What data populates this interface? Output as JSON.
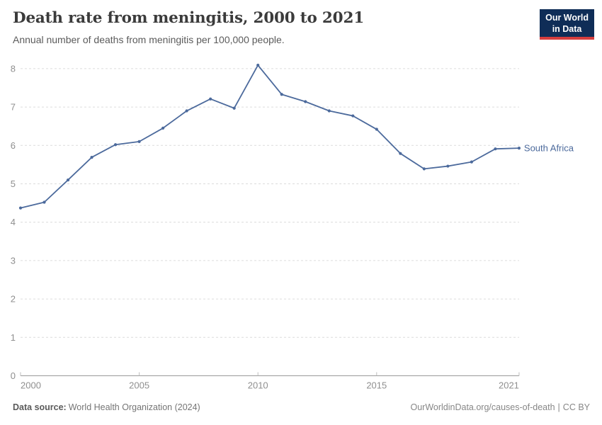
{
  "header": {
    "title": "Death rate from meningitis, 2000 to 2021",
    "subtitle": "Annual number of deaths from meningitis per 100,000 people.",
    "logo": {
      "line1": "Our World",
      "line2": "in Data"
    }
  },
  "chart_data": {
    "type": "line",
    "title": "Death rate from meningitis, 2000 to 2021",
    "xlabel": "",
    "ylabel": "",
    "x": [
      2000,
      2001,
      2002,
      2003,
      2004,
      2005,
      2006,
      2007,
      2008,
      2009,
      2010,
      2011,
      2012,
      2013,
      2014,
      2015,
      2016,
      2017,
      2018,
      2019,
      2020,
      2021
    ],
    "series": [
      {
        "name": "South Africa",
        "color": "#4c6a9c",
        "values": [
          4.37,
          4.52,
          5.1,
          5.69,
          6.02,
          6.1,
          6.45,
          6.9,
          7.21,
          6.97,
          8.09,
          7.33,
          7.14,
          6.9,
          6.77,
          6.42,
          5.79,
          5.39,
          5.46,
          5.57,
          5.91,
          5.93
        ]
      }
    ],
    "ylim": [
      0,
      8
    ],
    "yticks": [
      0,
      1,
      2,
      3,
      4,
      5,
      6,
      7,
      8
    ],
    "xticks": [
      2000,
      2005,
      2010,
      2015,
      2021
    ],
    "grid": "dashed-horizontal-gridlines",
    "legend_position": "label-at-line-end"
  },
  "colors": {
    "line": "#4c6a9c",
    "logo_background": "#0f2d57",
    "logo_accent_red": "#d63e3e",
    "gridline": "#dcdcdc",
    "axis": "#9a9a9a",
    "tick_text": "#8f8f8f"
  },
  "footer": {
    "source_label": "Data source:",
    "source_value": "World Health Organization (2024)",
    "link": "OurWorldinData.org/causes-of-death",
    "separator": "|",
    "license": "CC BY"
  }
}
